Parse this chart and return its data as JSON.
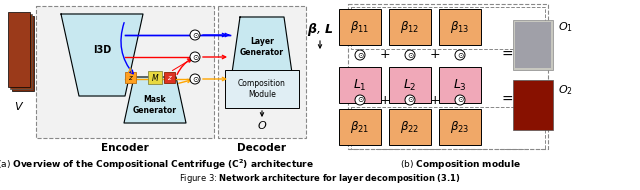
{
  "fig_width": 6.4,
  "fig_height": 1.9,
  "dpi": 100,
  "background_color": "#ffffff",
  "light_blue": "#C8E8F0",
  "light_blue2": "#B8D8E8",
  "orange_box": "#F0A868",
  "pink_box": "#F0A8B8",
  "caption_a_text": "(a) Overview of the Compositional Centrifuge (C$^2$) architecture",
  "caption_b_text": "(b) Composition module",
  "figure_caption": "Figure 3: Network architecture for layer decomposition (3.1)"
}
